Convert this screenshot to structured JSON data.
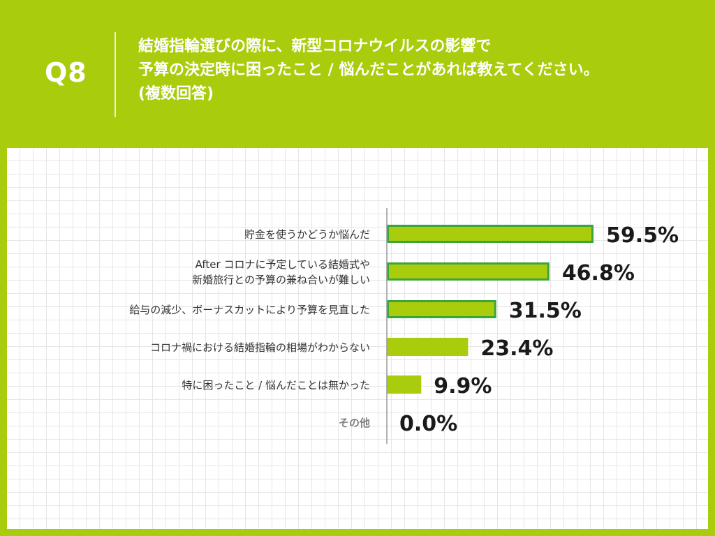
{
  "header": {
    "q_label": "Q8",
    "question_lines": [
      "結婚指輪選びの際に、新型コロナウイルスの影響で",
      "予算の決定時に困ったこと / 悩んだことがあれば教えてください。",
      "(複数回答)"
    ]
  },
  "colors": {
    "background": "#a9cc0d",
    "bar_fill": "#a9cc0d",
    "bar_highlight_border": "#3aa53a",
    "axis": "#999999",
    "value_text": "#1a1a1a",
    "label_text": "#333333",
    "label_muted": "#808080"
  },
  "chart_data": {
    "type": "bar",
    "orientation": "horizontal",
    "title": "",
    "xlabel": "",
    "ylabel": "",
    "xlim": [
      0,
      100
    ],
    "grid": true,
    "categories": [
      [
        "貯金を使うかどうか悩んだ"
      ],
      [
        "After コロナに予定している結婚式や",
        "新婚旅行との予算の兼ね合いが難しい"
      ],
      [
        "給与の減少、ボーナスカットにより予算を見直した"
      ],
      [
        "コロナ禍における結婚指輪の相場がわからない"
      ],
      [
        "特に困ったこと / 悩んだことは無かった"
      ],
      [
        "その他"
      ]
    ],
    "values": [
      59.5,
      46.8,
      31.5,
      23.4,
      9.9,
      0.0
    ],
    "value_labels": [
      "59.5%",
      "46.8%",
      "31.5%",
      "23.4%",
      "9.9%",
      "0.0%"
    ],
    "highlighted": [
      true,
      true,
      true,
      false,
      false,
      false
    ],
    "muted_labels": [
      false,
      false,
      false,
      false,
      false,
      true
    ]
  }
}
